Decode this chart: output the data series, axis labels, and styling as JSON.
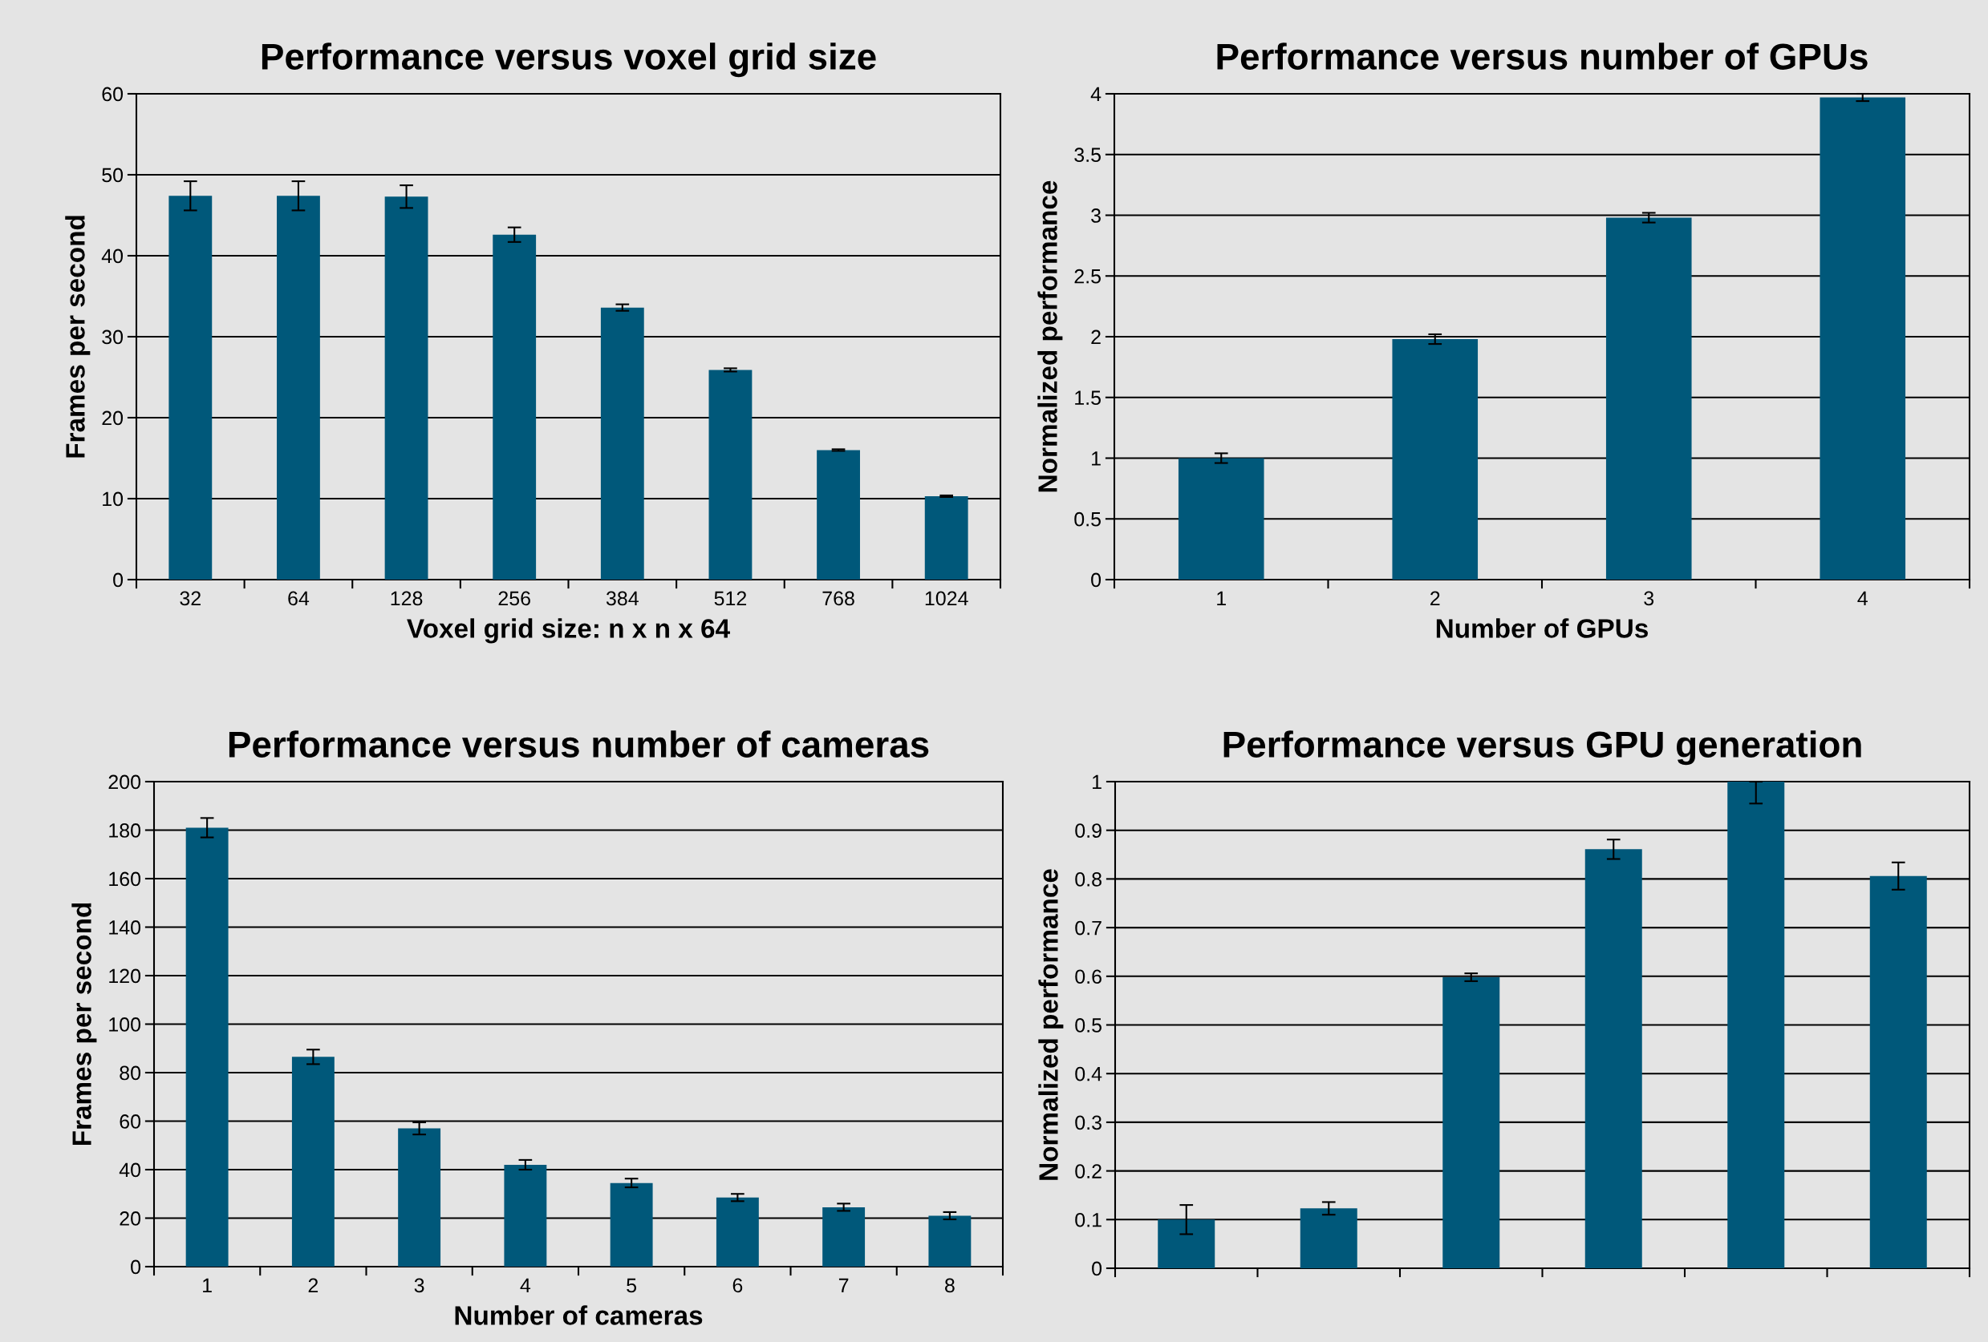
{
  "chart_data": [
    {
      "type": "bar",
      "title": "Performance versus voxel grid size",
      "xlabel": "Voxel grid size: n x n x 64",
      "ylabel": "Frames per second",
      "categories": [
        "32",
        "64",
        "128",
        "256",
        "384",
        "512",
        "768",
        "1024"
      ],
      "values": [
        47.4,
        47.4,
        47.3,
        42.6,
        33.6,
        25.9,
        16.0,
        10.3
      ],
      "errors": [
        1.8,
        1.8,
        1.4,
        0.9,
        0.4,
        0.2,
        0.1,
        0.1
      ],
      "color": "#00587a",
      "ylim": [
        0,
        60
      ],
      "yticks": [
        0,
        10,
        20,
        30,
        40,
        50,
        60
      ],
      "grid": "y"
    },
    {
      "type": "bar",
      "title": "Performance versus number of GPUs",
      "xlabel": "Number of GPUs",
      "ylabel": "Normalized performance",
      "categories": [
        "1",
        "2",
        "3",
        "4"
      ],
      "values": [
        1.0,
        1.98,
        2.98,
        3.97
      ],
      "errors": [
        0.04,
        0.04,
        0.04,
        0.03
      ],
      "color": "#00587a",
      "ylim": [
        0,
        4
      ],
      "yticks": [
        0,
        0.5,
        1,
        1.5,
        2,
        2.5,
        3,
        3.5,
        4
      ],
      "grid": "y"
    },
    {
      "type": "bar",
      "title": "Performance versus number of cameras",
      "xlabel": "Number of cameras",
      "ylabel": "Frames per second",
      "categories": [
        "1",
        "2",
        "3",
        "4",
        "5",
        "6",
        "7",
        "8"
      ],
      "values": [
        181,
        86.5,
        57,
        42,
        34.5,
        28.5,
        24.5,
        21
      ],
      "errors": [
        4,
        3,
        2.5,
        2,
        1.8,
        1.5,
        1.5,
        1.5
      ],
      "color": "#00587a",
      "ylim": [
        0,
        200
      ],
      "yticks": [
        0,
        20,
        40,
        60,
        80,
        100,
        120,
        140,
        160,
        180,
        200
      ],
      "grid": "y"
    },
    {
      "type": "bar",
      "title": "Performance versus GPU generation",
      "ylabel": "Normalized performance",
      "categories": [
        null,
        null,
        null,
        null,
        null,
        null
      ],
      "values": [
        0.1,
        0.123,
        0.598,
        0.861,
        1.0,
        0.806
      ],
      "errors": [
        0.03,
        0.013,
        0.008,
        0.02,
        [
          0.955,
          1.0
        ],
        0.028
      ],
      "color": "#00587a",
      "ylim": [
        0,
        1
      ],
      "yticks": [
        0,
        0.1,
        0.2,
        0.3,
        0.4,
        0.5,
        0.6,
        0.7,
        0.8,
        0.9,
        1
      ],
      "grid": "y"
    }
  ]
}
